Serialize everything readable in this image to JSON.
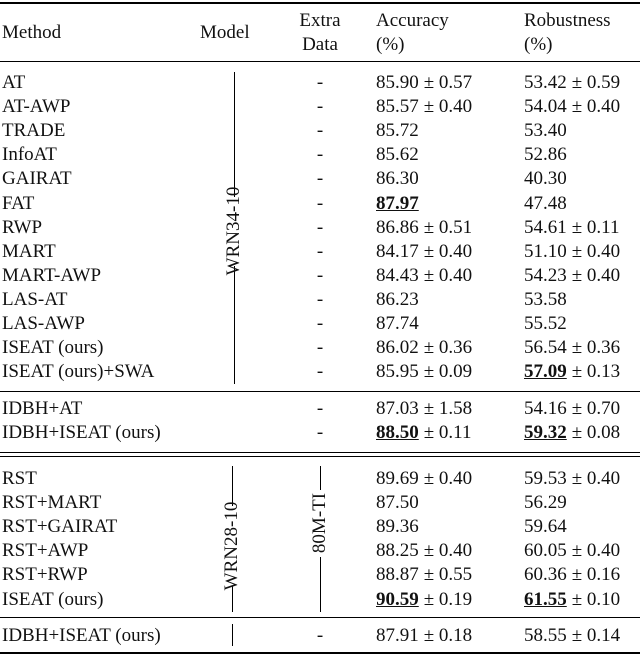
{
  "header": {
    "method": "Method",
    "model": "Model",
    "extra": [
      "Extra",
      "Data"
    ],
    "accuracy": [
      "Accuracy",
      "(%)"
    ],
    "robustness": [
      "Robustness",
      "(%)"
    ]
  },
  "sections": [
    {
      "model": "WRN34-10",
      "rows": [
        {
          "method": "AT",
          "extra": "-",
          "accuracy": [
            "85.90",
            "± 0.57"
          ],
          "robustness": [
            "53.42",
            "± 0.59"
          ]
        },
        {
          "method": "AT-AWP",
          "extra": "-",
          "accuracy": [
            "85.57",
            "± 0.40"
          ],
          "robustness": [
            "54.04",
            "± 0.40"
          ]
        },
        {
          "method": "TRADE",
          "extra": "-",
          "accuracy": [
            "85.72"
          ],
          "robustness": [
            "53.40"
          ]
        },
        {
          "method": "InfoAT",
          "extra": "-",
          "accuracy": [
            "85.62"
          ],
          "robustness": [
            "52.86"
          ]
        },
        {
          "method": "GAIRAT",
          "extra": "-",
          "accuracy": [
            "86.30"
          ],
          "robustness": [
            "40.30"
          ]
        },
        {
          "method": "FAT",
          "extra": "-",
          "accuracy": [
            "87.97"
          ],
          "robustness": [
            "47.48"
          ],
          "bold": [
            "accuracy"
          ]
        },
        {
          "method": "RWP",
          "extra": "-",
          "accuracy": [
            "86.86",
            "± 0.51"
          ],
          "robustness": [
            "54.61",
            "± 0.11"
          ]
        },
        {
          "method": "MART",
          "extra": "-",
          "accuracy": [
            "84.17",
            "± 0.40"
          ],
          "robustness": [
            "51.10",
            "± 0.40"
          ]
        },
        {
          "method": "MART-AWP",
          "extra": "-",
          "accuracy": [
            "84.43",
            "± 0.40"
          ],
          "robustness": [
            "54.23",
            "± 0.40"
          ]
        },
        {
          "method": "LAS-AT",
          "extra": "-",
          "accuracy": [
            "86.23"
          ],
          "robustness": [
            "53.58"
          ]
        },
        {
          "method": "LAS-AWP",
          "extra": "-",
          "accuracy": [
            "87.74"
          ],
          "robustness": [
            "55.52"
          ]
        },
        {
          "method": "ISEAT (ours)",
          "extra": "-",
          "accuracy": [
            "86.02",
            "± 0.36"
          ],
          "robustness": [
            "56.54",
            "± 0.36"
          ]
        },
        {
          "method": "ISEAT (ours)+SWA",
          "extra": "-",
          "accuracy": [
            "85.95",
            "± 0.09"
          ],
          "robustness": [
            "57.09",
            "± 0.13"
          ],
          "bold": [
            "robustness"
          ]
        }
      ]
    },
    {
      "rows": [
        {
          "method": "IDBH+AT",
          "extra": "-",
          "accuracy": [
            "87.03",
            "± 1.58"
          ],
          "robustness": [
            "54.16",
            "± 0.70"
          ]
        },
        {
          "method": "IDBH+ISEAT (ours)",
          "extra": "-",
          "accuracy": [
            "88.50",
            "± 0.11"
          ],
          "robustness": [
            "59.32",
            "± 0.08"
          ],
          "bold": [
            "accuracy",
            "robustness"
          ]
        }
      ]
    },
    {
      "model": "WRN28-10",
      "extra": "80M-TI",
      "rows": [
        {
          "method": "RST",
          "accuracy": [
            "89.69",
            "± 0.40"
          ],
          "robustness": [
            "59.53",
            "± 0.40"
          ]
        },
        {
          "method": "RST+MART",
          "accuracy": [
            "87.50"
          ],
          "robustness": [
            "56.29"
          ]
        },
        {
          "method": "RST+GAIRAT",
          "accuracy": [
            "89.36"
          ],
          "robustness": [
            "59.64"
          ]
        },
        {
          "method": "RST+AWP",
          "accuracy": [
            "88.25",
            "± 0.40"
          ],
          "robustness": [
            "60.05",
            "± 0.40"
          ]
        },
        {
          "method": "RST+RWP",
          "accuracy": [
            "88.87",
            "± 0.55"
          ],
          "robustness": [
            "60.36",
            "± 0.16"
          ]
        },
        {
          "method": "ISEAT (ours)",
          "accuracy": [
            "90.59",
            "± 0.19"
          ],
          "robustness": [
            "61.55",
            "± 0.10"
          ],
          "bold": [
            "accuracy",
            "robustness"
          ]
        }
      ]
    },
    {
      "rows": [
        {
          "method": "IDBH+ISEAT (ours)",
          "extra": "-",
          "accuracy": [
            "87.91",
            "± 0.18"
          ],
          "robustness": [
            "58.55",
            "± 0.14"
          ]
        }
      ]
    }
  ]
}
